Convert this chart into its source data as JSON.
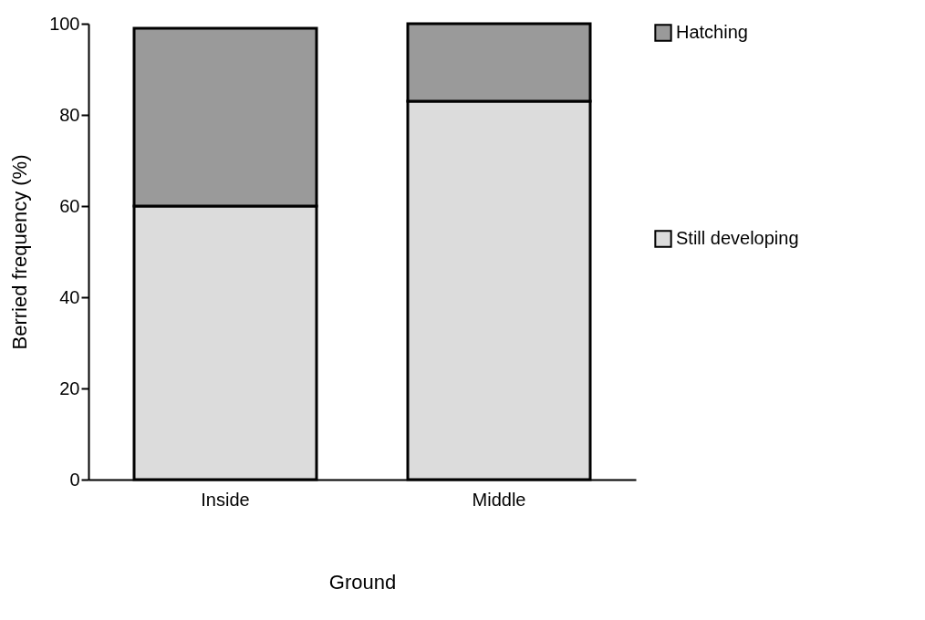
{
  "chart_data": {
    "type": "bar",
    "stacked": true,
    "xlabel": "Ground",
    "ylabel": "Berried frequency (%)",
    "categories": [
      "Inside",
      "Middle"
    ],
    "series": [
      {
        "name": "Still developing",
        "color": "#dcdcdc",
        "values": [
          60,
          83
        ]
      },
      {
        "name": "Hatching",
        "color": "#9a9a9a",
        "values": [
          39,
          17
        ]
      }
    ],
    "ylim": [
      0,
      100
    ],
    "yticks": [
      0,
      20,
      40,
      60,
      80,
      100
    ],
    "grid": false,
    "legend": "right"
  }
}
